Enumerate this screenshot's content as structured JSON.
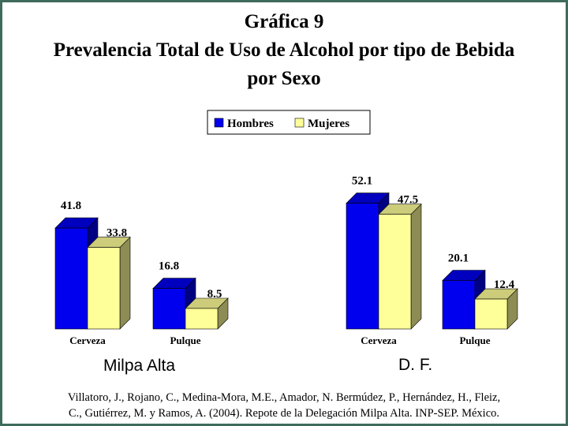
{
  "colors": {
    "frame": "#3f6b5c",
    "hombres": "#0000ee",
    "mujeres": "#ffff99"
  },
  "chart_data": {
    "type": "bar",
    "title": [
      "Gráfica 9",
      "Prevalencia Total de Uso de Alcohol por tipo de Bebida",
      "por Sexo"
    ],
    "legend": [
      "Hombres",
      "Mujeres"
    ],
    "legend_position": "top-center",
    "style": "3d",
    "groups": [
      {
        "name": "Milpa Alta",
        "categories": [
          "Cerveza",
          "Pulque"
        ],
        "series": [
          {
            "name": "Hombres",
            "values": [
              41.8,
              16.8
            ]
          },
          {
            "name": "Mujeres",
            "values": [
              33.8,
              8.5
            ]
          }
        ]
      },
      {
        "name": "D. F.",
        "categories": [
          "Cerveza",
          "Pulque"
        ],
        "series": [
          {
            "name": "Hombres",
            "values": [
              52.1,
              20.1
            ]
          },
          {
            "name": "Mujeres",
            "values": [
              47.5,
              12.4
            ]
          }
        ]
      }
    ],
    "ylim": [
      0,
      55
    ],
    "grid": false
  },
  "source_lines": [
    "Villatoro, J., Rojano, C., Medina-Mora, M.E., Amador, N. Bermúdez, P., Hernández, H., Fleiz,",
    "C., Gutiérrez, M. y Ramos, A. (2004). Repote de la Delegación Milpa Alta. INP-SEP. México."
  ]
}
